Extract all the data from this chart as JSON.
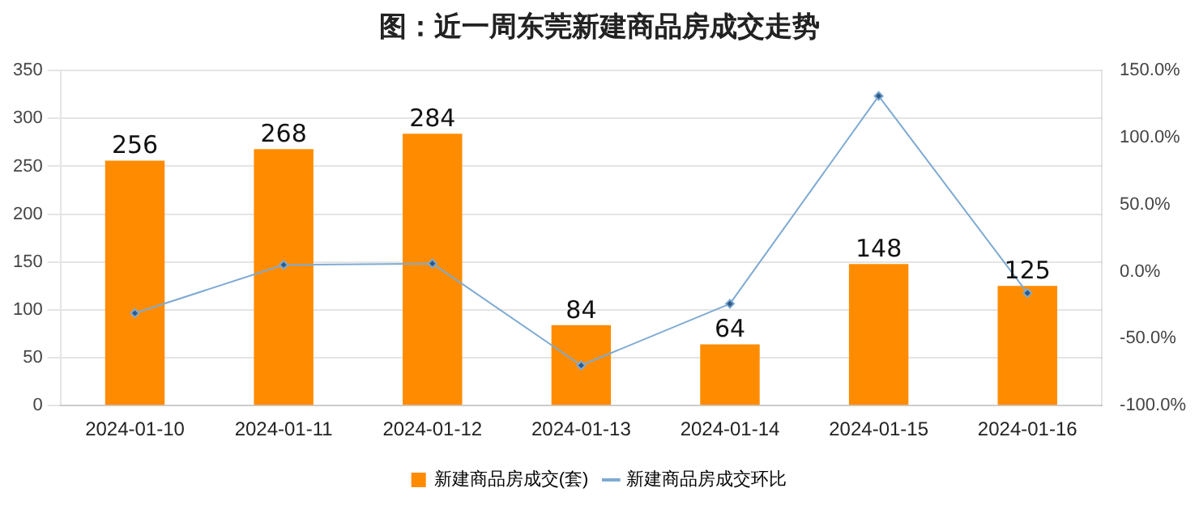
{
  "chart_data": {
    "type": "bar",
    "title": "图：近一周东莞新建商品房成交走势",
    "categories": [
      "2024-01-10",
      "2024-01-11",
      "2024-01-12",
      "2024-01-13",
      "2024-01-14",
      "2024-01-15",
      "2024-01-16"
    ],
    "series": [
      {
        "name": "新建商品房成交(套)",
        "color": "#ff8c00",
        "values": [
          256,
          268,
          284,
          84,
          64,
          148,
          125
        ],
        "value_labels": [
          "256",
          "268",
          "284",
          "84",
          "64",
          "148",
          "125"
        ]
      },
      {
        "name": "新建商品房成交环比",
        "type": "line",
        "axis": "y2",
        "color": "#7eaad3",
        "marker": "diamond",
        "values": [
          -31,
          5,
          6,
          -70,
          -24,
          131,
          -16
        ]
      }
    ],
    "ylim": [
      0,
      350
    ],
    "yticks": [
      0,
      50,
      100,
      150,
      200,
      250,
      300,
      350
    ],
    "y2lim": [
      -100,
      150
    ],
    "y2ticks": [
      {
        "value": -100,
        "label": "-100.0%"
      },
      {
        "value": -50,
        "label": "-50.0%"
      },
      {
        "value": 0,
        "label": "0.0%"
      },
      {
        "value": 50,
        "label": "50.0%"
      },
      {
        "value": 100,
        "label": "100.0%"
      },
      {
        "value": 150,
        "label": "150.0%"
      }
    ],
    "grid": "y",
    "legend": "bottom"
  }
}
